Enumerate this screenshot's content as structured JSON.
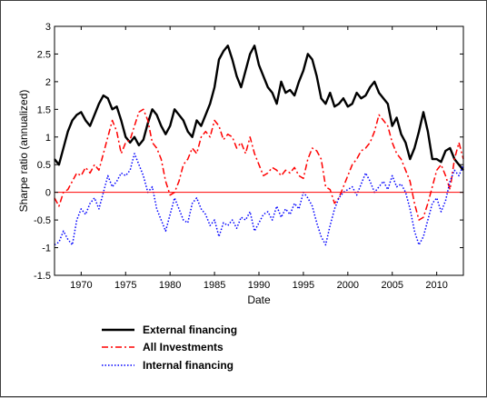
{
  "chart_data": {
    "type": "line",
    "title": "",
    "xlabel": "Date",
    "ylabel": "Sharpe ratio (annualized)",
    "xlim": [
      1967,
      2013
    ],
    "ylim": [
      -1.5,
      3
    ],
    "xticks": [
      1970,
      1975,
      1980,
      1985,
      1990,
      1995,
      2000,
      2005,
      2010
    ],
    "yticks": [
      -1.5,
      -1,
      -0.5,
      0,
      0.5,
      1,
      1.5,
      2,
      2.5,
      3
    ],
    "xtick_labels": [
      "1970",
      "1975",
      "1980",
      "1985",
      "1990",
      "1995",
      "2000",
      "2005",
      "2010"
    ],
    "ytick_labels": [
      "-1.5",
      "-1",
      "-0.5",
      "0",
      "0.5",
      "1",
      "1.5",
      "2",
      "2.5",
      "3"
    ],
    "grid": false,
    "legend_position": "below-plot-left",
    "zero_line": {
      "y": 0,
      "color": "#ff0000"
    },
    "series": [
      {
        "name": "External financing",
        "color": "#000000",
        "style": "solid",
        "x": [
          1967,
          1967.5,
          1968,
          1968.5,
          1969,
          1969.5,
          1970,
          1970.5,
          1971,
          1971.5,
          1972,
          1972.5,
          1973,
          1973.5,
          1974,
          1974.5,
          1975,
          1975.5,
          1976,
          1976.5,
          1977,
          1977.5,
          1978,
          1978.5,
          1979,
          1979.5,
          1980,
          1980.5,
          1981,
          1981.5,
          1982,
          1982.5,
          1983,
          1983.5,
          1984,
          1984.5,
          1985,
          1985.5,
          1986,
          1986.5,
          1987,
          1987.5,
          1988,
          1988.5,
          1989,
          1989.5,
          1990,
          1990.5,
          1991,
          1991.5,
          1992,
          1992.5,
          1993,
          1993.5,
          1994,
          1994.5,
          1995,
          1995.5,
          1996,
          1996.5,
          1997,
          1997.5,
          1998,
          1998.5,
          1999,
          1999.5,
          2000,
          2000.5,
          2001,
          2001.5,
          2002,
          2002.5,
          2003,
          2003.5,
          2004,
          2004.5,
          2005,
          2005.5,
          2006,
          2006.5,
          2007,
          2007.5,
          2008,
          2008.5,
          2009,
          2009.5,
          2010,
          2010.5,
          2011,
          2011.5,
          2012,
          2012.5,
          2013
        ],
        "values": [
          0.6,
          0.5,
          0.8,
          1.1,
          1.3,
          1.4,
          1.45,
          1.3,
          1.2,
          1.4,
          1.6,
          1.75,
          1.7,
          1.5,
          1.55,
          1.3,
          1.0,
          0.9,
          1.0,
          0.85,
          0.95,
          1.25,
          1.5,
          1.4,
          1.2,
          1.05,
          1.2,
          1.5,
          1.4,
          1.3,
          1.1,
          1.0,
          1.3,
          1.2,
          1.4,
          1.6,
          1.9,
          2.4,
          2.55,
          2.65,
          2.4,
          2.1,
          1.9,
          2.2,
          2.5,
          2.65,
          2.3,
          2.1,
          1.9,
          1.8,
          1.6,
          2.0,
          1.8,
          1.85,
          1.75,
          2.0,
          2.2,
          2.5,
          2.4,
          2.1,
          1.7,
          1.6,
          1.8,
          1.55,
          1.6,
          1.7,
          1.55,
          1.6,
          1.8,
          1.7,
          1.75,
          1.9,
          2.0,
          1.8,
          1.7,
          1.6,
          1.2,
          1.35,
          1.05,
          0.9,
          0.6,
          0.8,
          1.1,
          1.45,
          1.1,
          0.6,
          0.6,
          0.55,
          0.75,
          0.8,
          0.6,
          0.5,
          0.4
        ]
      },
      {
        "name": "All Investments",
        "color": "#ff0000",
        "style": "dashdot",
        "x": [
          1967,
          1967.5,
          1968,
          1968.5,
          1969,
          1969.5,
          1970,
          1970.5,
          1971,
          1971.5,
          1972,
          1972.5,
          1973,
          1973.5,
          1974,
          1974.5,
          1975,
          1975.5,
          1976,
          1976.5,
          1977,
          1977.5,
          1978,
          1978.5,
          1979,
          1979.5,
          1980,
          1980.5,
          1981,
          1981.5,
          1982,
          1982.5,
          1983,
          1983.5,
          1984,
          1984.5,
          1985,
          1985.5,
          1986,
          1986.5,
          1987,
          1987.5,
          1988,
          1988.5,
          1989,
          1989.5,
          1990,
          1990.5,
          1991,
          1991.5,
          1992,
          1992.5,
          1993,
          1993.5,
          1994,
          1994.5,
          1995,
          1995.5,
          1996,
          1996.5,
          1997,
          1997.5,
          1998,
          1998.5,
          1999,
          1999.5,
          2000,
          2000.5,
          2001,
          2001.5,
          2002,
          2002.5,
          2003,
          2003.5,
          2004,
          2004.5,
          2005,
          2005.5,
          2006,
          2006.5,
          2007,
          2007.5,
          2008,
          2008.5,
          2009,
          2009.5,
          2010,
          2010.5,
          2011,
          2011.5,
          2012,
          2012.5,
          2013
        ],
        "values": [
          -0.1,
          -0.25,
          0.0,
          0.05,
          0.2,
          0.35,
          0.3,
          0.45,
          0.35,
          0.5,
          0.4,
          0.7,
          1.0,
          1.3,
          1.1,
          0.7,
          0.9,
          0.95,
          1.2,
          1.45,
          1.5,
          1.3,
          0.9,
          0.8,
          0.6,
          0.2,
          -0.05,
          0.0,
          0.2,
          0.5,
          0.6,
          0.8,
          0.7,
          1.0,
          1.1,
          1.0,
          1.3,
          1.2,
          0.95,
          1.05,
          1.0,
          0.8,
          0.9,
          0.7,
          1.0,
          0.7,
          0.5,
          0.3,
          0.35,
          0.45,
          0.4,
          0.3,
          0.4,
          0.35,
          0.45,
          0.3,
          0.25,
          0.6,
          0.8,
          0.75,
          0.6,
          0.1,
          0.05,
          -0.2,
          -0.1,
          0.1,
          0.3,
          0.5,
          0.6,
          0.75,
          0.8,
          0.9,
          1.1,
          1.4,
          1.3,
          1.2,
          0.9,
          0.7,
          0.6,
          0.4,
          0.2,
          -0.2,
          -0.5,
          -0.45,
          -0.2,
          0.1,
          0.4,
          0.5,
          0.3,
          0.05,
          0.6,
          0.9,
          0.6
        ]
      },
      {
        "name": "Internal financing",
        "color": "#0000ff",
        "style": "dotted",
        "x": [
          1967,
          1967.5,
          1968,
          1968.5,
          1969,
          1969.5,
          1970,
          1970.5,
          1971,
          1971.5,
          1972,
          1972.5,
          1973,
          1973.5,
          1974,
          1974.5,
          1975,
          1975.5,
          1976,
          1976.5,
          1977,
          1977.5,
          1978,
          1978.5,
          1979,
          1979.5,
          1980,
          1980.5,
          1981,
          1981.5,
          1982,
          1982.5,
          1983,
          1983.5,
          1984,
          1984.5,
          1985,
          1985.5,
          1986,
          1986.5,
          1987,
          1987.5,
          1988,
          1988.5,
          1989,
          1989.5,
          1990,
          1990.5,
          1991,
          1991.5,
          1992,
          1992.5,
          1993,
          1993.5,
          1994,
          1994.5,
          1995,
          1995.5,
          1996,
          1996.5,
          1997,
          1997.5,
          1998,
          1998.5,
          1999,
          1999.5,
          2000,
          2000.5,
          2001,
          2001.5,
          2002,
          2002.5,
          2003,
          2003.5,
          2004,
          2004.5,
          2005,
          2005.5,
          2006,
          2006.5,
          2007,
          2007.5,
          2008,
          2008.5,
          2009,
          2009.5,
          2010,
          2010.5,
          2011,
          2011.5,
          2012,
          2012.5,
          2013
        ],
        "values": [
          -0.95,
          -0.9,
          -0.7,
          -0.85,
          -0.95,
          -0.5,
          -0.3,
          -0.4,
          -0.2,
          -0.1,
          -0.3,
          0.0,
          0.3,
          0.1,
          0.2,
          0.35,
          0.3,
          0.4,
          0.7,
          0.5,
          0.3,
          0.0,
          0.1,
          -0.3,
          -0.5,
          -0.7,
          -0.4,
          -0.1,
          -0.3,
          -0.5,
          -0.55,
          -0.2,
          -0.1,
          -0.3,
          -0.4,
          -0.6,
          -0.5,
          -0.8,
          -0.55,
          -0.6,
          -0.5,
          -0.65,
          -0.45,
          -0.5,
          -0.35,
          -0.7,
          -0.55,
          -0.4,
          -0.35,
          -0.5,
          -0.25,
          -0.45,
          -0.3,
          -0.4,
          -0.2,
          -0.3,
          0.0,
          -0.1,
          -0.25,
          -0.55,
          -0.8,
          -0.95,
          -0.6,
          -0.3,
          -0.1,
          0.0,
          0.05,
          0.1,
          -0.05,
          0.15,
          0.35,
          0.2,
          0.0,
          0.1,
          0.2,
          0.05,
          0.3,
          0.1,
          0.15,
          0.0,
          -0.3,
          -0.7,
          -0.95,
          -0.8,
          -0.5,
          -0.2,
          -0.1,
          -0.35,
          -0.15,
          0.2,
          0.4,
          0.3,
          0.5
        ]
      }
    ]
  }
}
